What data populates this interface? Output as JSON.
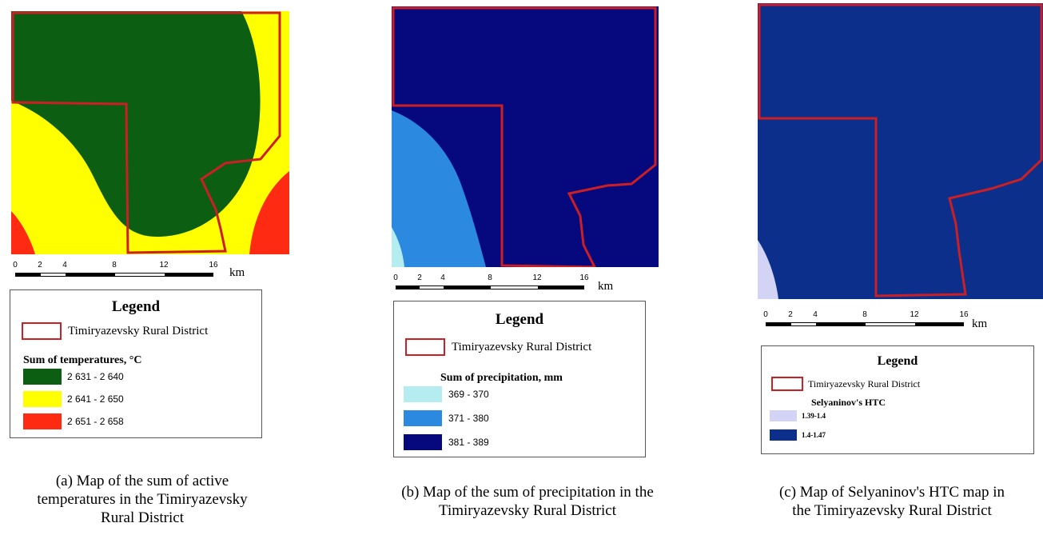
{
  "panels": [
    {
      "id": "a",
      "scale_numbers": [
        "0",
        "2",
        "4",
        "8",
        "12",
        "16"
      ],
      "scale_unit": "km",
      "legend": {
        "title": "Legend",
        "boundary_label": "Timiryazevsky Rural District",
        "section_title": "Sum of temperatures, °C",
        "items": [
          {
            "label": "2 631 - 2 640",
            "color": "#0b5e12"
          },
          {
            "label": "2 641 - 2 650",
            "color": "#ffff00"
          },
          {
            "label": "2 651 - 2 658",
            "color": "#ff2a12"
          }
        ]
      },
      "caption": [
        "(a) Map of the sum of active",
        "temperatures in the Timiryazevsky",
        "Rural District"
      ]
    },
    {
      "id": "b",
      "scale_numbers": [
        "0",
        "2",
        "4",
        "8",
        "12",
        "16"
      ],
      "scale_unit": "km",
      "legend": {
        "title": "Legend",
        "boundary_label": "Timiryazevsky Rural District",
        "section_title": "Sum of precipitation, mm",
        "items": [
          {
            "label": "369 - 370",
            "color": "#b5ecef"
          },
          {
            "label": "371 - 380",
            "color": "#2b8ae0"
          },
          {
            "label": "381 - 389",
            "color": "#06087e"
          }
        ]
      },
      "caption": [
        "(b) Map of the sum of precipitation in the",
        "Timiryazevsky Rural District"
      ]
    },
    {
      "id": "c",
      "scale_numbers": [
        "0",
        "2",
        "4",
        "8",
        "12",
        "16"
      ],
      "scale_unit": "km",
      "legend": {
        "title": "Legend",
        "boundary_label": "Timiryazevsky Rural District",
        "section_title": "Selyaninov's HTC",
        "items": [
          {
            "label": "1.39-1.4",
            "color": "#d3d3f5"
          },
          {
            "label": "1.4-1.47",
            "color": "#0c2f8c"
          }
        ]
      },
      "caption": [
        "(c) Map of Selyaninov's HTC map in",
        "the Timiryazevsky Rural District"
      ]
    }
  ],
  "colors": {
    "boundary": "#cc1f24"
  }
}
